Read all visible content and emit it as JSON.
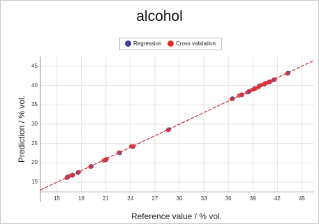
{
  "chart_data": {
    "type": "scatter",
    "title": "alcohol",
    "xlabel": "Reference value / % vol.",
    "ylabel": "Prediction / % vol.",
    "xlim": [
      13,
      46.5
    ],
    "ylim": [
      12.5,
      47.5
    ],
    "xticks": [
      15,
      18,
      21,
      24,
      27,
      30,
      33,
      36,
      39,
      42,
      45
    ],
    "yticks": [
      15,
      20,
      25,
      30,
      35,
      40,
      45
    ],
    "grid": true,
    "legend_position": "top-center",
    "series": [
      {
        "name": "Regression",
        "color": "#3a3f9c",
        "x": [
          16.3,
          16.9,
          17.6,
          19.2,
          21.0,
          22.7,
          24.3,
          28.7,
          36.5,
          37.6,
          38.5,
          39.2,
          39.8,
          40.4,
          41.0,
          41.6,
          43.3
        ],
        "y": [
          16.3,
          16.8,
          17.5,
          19.1,
          20.8,
          22.6,
          24.2,
          28.6,
          36.6,
          37.6,
          38.4,
          39.2,
          39.9,
          40.4,
          40.9,
          41.5,
          43.2
        ]
      },
      {
        "name": "Cross validation",
        "color": "#e8302f",
        "x": [
          16.2,
          16.6,
          17.0,
          17.7,
          19.1,
          20.7,
          21.1,
          22.6,
          24.1,
          24.4,
          28.6,
          36.4,
          37.3,
          37.7,
          38.3,
          38.8,
          39.1,
          39.4,
          39.7,
          40.0,
          40.3,
          40.6,
          40.9,
          41.2,
          41.7,
          43.2
        ],
        "y": [
          16.1,
          16.7,
          16.9,
          17.6,
          19.0,
          20.6,
          21.0,
          22.7,
          24.3,
          24.3,
          28.5,
          36.5,
          37.4,
          37.6,
          38.2,
          38.8,
          39.0,
          39.3,
          39.6,
          40.1,
          40.3,
          40.7,
          40.8,
          41.1,
          41.6,
          43.1
        ]
      }
    ],
    "fit_line": {
      "slope": 1.0,
      "intercept": 0.0,
      "color": "#d0202a"
    }
  }
}
